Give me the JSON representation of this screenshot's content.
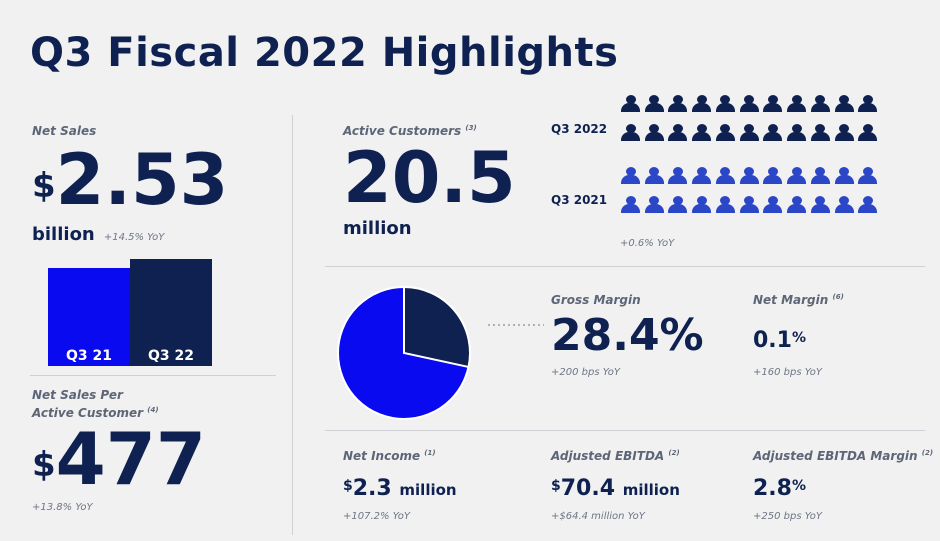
{
  "title": "Q3 Fiscal 2022 Highlights",
  "net_sales": {
    "label": "Net Sales",
    "currency": "$",
    "value": "2.53",
    "unit": "billion",
    "yoy": "+14.5% YoY",
    "bars": [
      {
        "label": "Q3 21",
        "color": "#0a0af0"
      },
      {
        "label": "Q3 22",
        "color": "#0e2150"
      }
    ]
  },
  "net_sales_per_customer": {
    "label_line1": "Net Sales Per",
    "label_line2": "Active Customer",
    "footnote": "(4)",
    "currency": "$",
    "value": "477",
    "yoy": "+13.8% YoY"
  },
  "active_customers": {
    "label": "Active Customers",
    "footnote": "(3)",
    "value": "20.5",
    "unit": "million",
    "yoy": "+0.6% YoY",
    "rows": [
      {
        "label": "Q3 2022",
        "color": "#0e2150"
      },
      {
        "label": "Q3 2021",
        "color": "#2b47c8"
      }
    ]
  },
  "gross_margin": {
    "label": "Gross Margin",
    "value": "28.4%",
    "yoy": "+200 bps YoY",
    "pie_fraction": 0.284,
    "pie_colors": {
      "main": "#0a0af0",
      "slice": "#0e2150"
    }
  },
  "net_margin": {
    "label": "Net Margin",
    "footnote": "(6)",
    "value": "0.1",
    "pct": "%",
    "yoy": "+160 bps YoY"
  },
  "net_income": {
    "label": "Net Income",
    "footnote": "(1)",
    "currency": "$",
    "value": "2.3",
    "unit": "million",
    "yoy": "+107.2% YoY"
  },
  "adjusted_ebitda": {
    "label": "Adjusted EBITDA",
    "footnote": "(2)",
    "currency": "$",
    "value": "70.4",
    "unit": "million",
    "yoy": "+$64.4 million YoY"
  },
  "adjusted_ebitda_margin": {
    "label": "Adjusted EBITDA Margin",
    "footnote": "(2)",
    "value": "2.8",
    "pct": "%",
    "yoy": "+250 bps YoY"
  }
}
